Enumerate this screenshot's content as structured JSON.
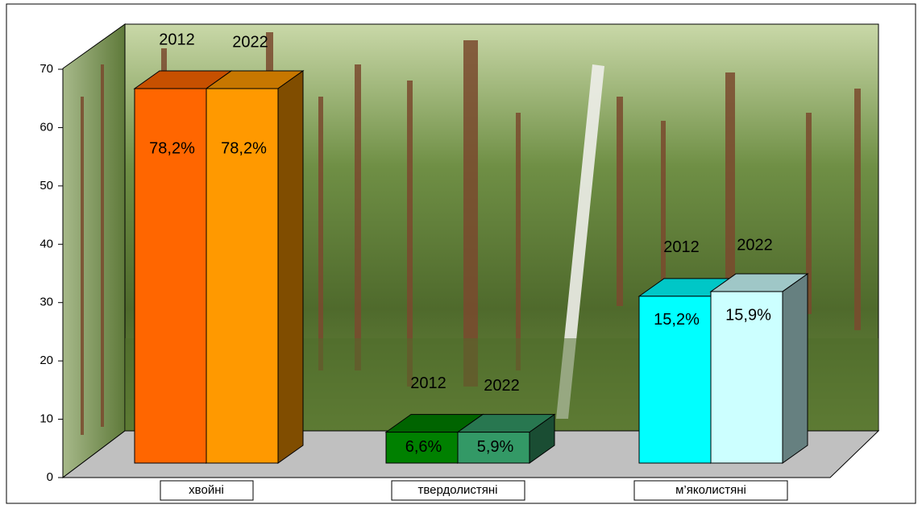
{
  "chart_data": {
    "type": "bar3d",
    "categories": [
      "хвойні",
      "твердолистяні",
      "м’яколистяні"
    ],
    "series": [
      {
        "name": "2012",
        "colors": [
          "#ff6600",
          "#008000",
          "#00ffff"
        ],
        "values": [
          64.2,
          5.3,
          28.6
        ],
        "labels": [
          "78,2%",
          "6,6%",
          "15,2%"
        ]
      },
      {
        "name": "2022",
        "colors": [
          "#ff9900",
          "#339966",
          "#ccffff"
        ],
        "values": [
          64.2,
          5.3,
          29.4
        ],
        "labels": [
          "78,2%",
          "5,9%",
          "15,9%"
        ]
      }
    ],
    "ylim": [
      0,
      70
    ],
    "yticks": [
      0,
      10,
      20,
      30,
      40,
      50,
      60,
      70
    ]
  }
}
